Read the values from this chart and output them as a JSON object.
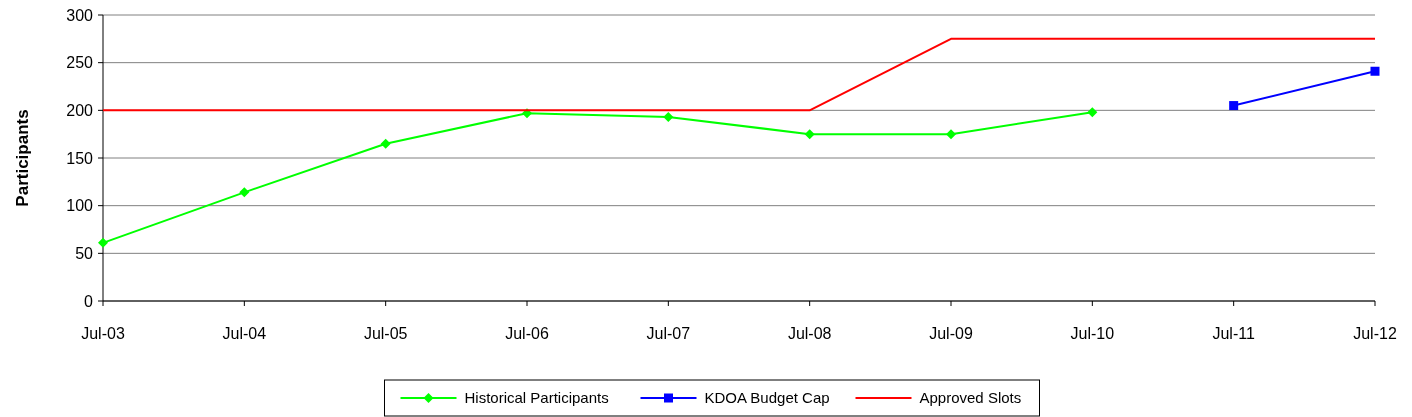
{
  "chart_data": {
    "type": "line",
    "ylabel": "Participants",
    "categories": [
      "Jul-03",
      "Jul-04",
      "Jul-05",
      "Jul-06",
      "Jul-07",
      "Jul-08",
      "Jul-09",
      "Jul-10",
      "Jul-11",
      "Jul-12"
    ],
    "series": [
      {
        "name": "Historical Participants",
        "color": "#00ff00",
        "marker": "diamond",
        "values": [
          61,
          114,
          165,
          197,
          193,
          175,
          175,
          198,
          null,
          null
        ]
      },
      {
        "name": "KDOA Budget Cap",
        "color": "#0000ff",
        "marker": "square",
        "values": [
          null,
          null,
          null,
          null,
          null,
          null,
          null,
          null,
          205,
          241
        ]
      },
      {
        "name": "Approved Slots",
        "color": "#ff0000",
        "marker": "none",
        "values": [
          200,
          200,
          200,
          200,
          200,
          200,
          275,
          275,
          275,
          275
        ]
      }
    ],
    "ylim": [
      0,
      300
    ],
    "yticks": [
      0,
      50,
      100,
      150,
      200,
      250,
      300
    ],
    "grid": "y",
    "legend": "bottom"
  }
}
